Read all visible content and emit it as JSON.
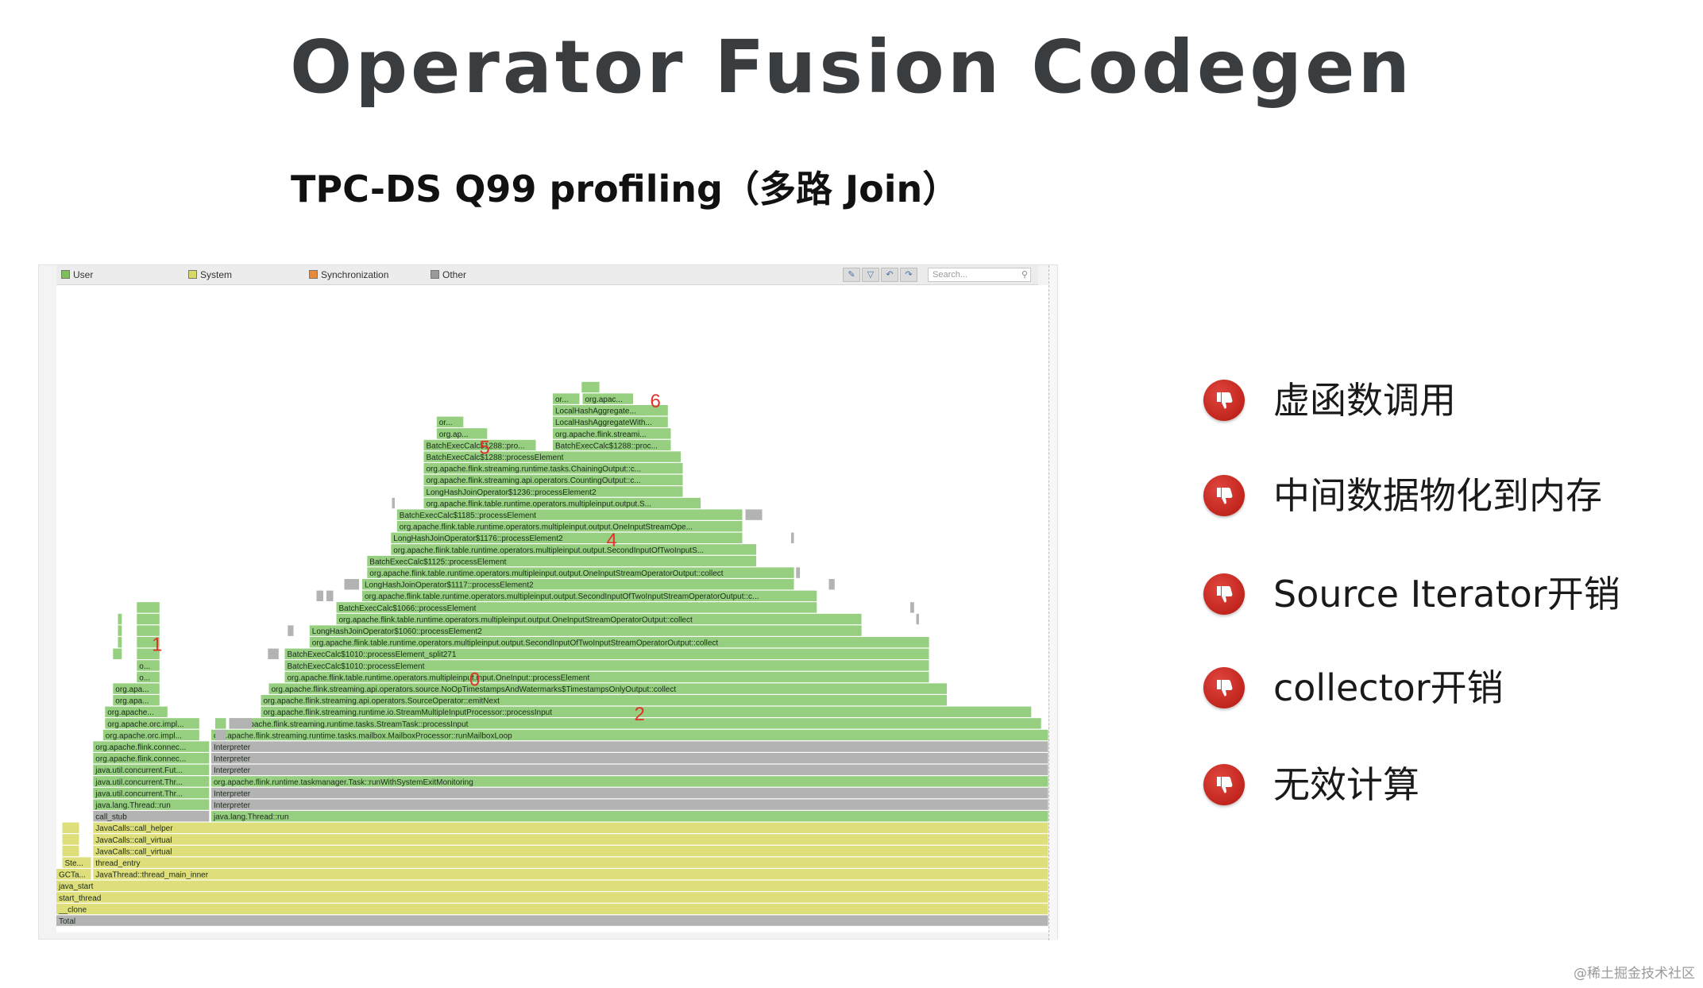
{
  "slide": {
    "title": "Operator Fusion Codegen",
    "subtitle": "TPC-DS Q99 profiling（多路 Join）",
    "watermark": "@稀土掘金技术社区"
  },
  "flamegraph": {
    "legend": [
      {
        "label": "User",
        "color": "#7fbf5a"
      },
      {
        "label": "System",
        "color": "#d8d86a"
      },
      {
        "label": "Synchronization",
        "color": "#e8883a"
      },
      {
        "label": "Other",
        "color": "#9a9a9a"
      }
    ],
    "search_placeholder": "Search...",
    "colors": {
      "user": "#95cf7f",
      "system": "#dede7a",
      "other": "#b3b3b3"
    },
    "frames": [
      {
        "label": "Total",
        "depth": 0,
        "start": 0,
        "end": 1,
        "kind": "other"
      },
      {
        "label": "__clone",
        "depth": 1,
        "start": 0,
        "end": 1,
        "kind": "system"
      },
      {
        "label": "start_thread",
        "depth": 2,
        "start": 0,
        "end": 1,
        "kind": "system"
      },
      {
        "label": "java_start",
        "depth": 3,
        "start": 0,
        "end": 1,
        "kind": "system"
      },
      {
        "label": "GCTa...",
        "depth": 4,
        "start": 0,
        "end": 0.036,
        "kind": "system"
      },
      {
        "label": "JavaThread::thread_main_inner",
        "depth": 4,
        "start": 0.037,
        "end": 1,
        "kind": "system"
      },
      {
        "label": "Ste...",
        "depth": 5,
        "start": 0.006,
        "end": 0.036,
        "kind": "system"
      },
      {
        "label": "thread_entry",
        "depth": 5,
        "start": 0.037,
        "end": 1,
        "kind": "system"
      },
      {
        "label": "",
        "depth": 6,
        "start": 0.006,
        "end": 0.024,
        "kind": "system"
      },
      {
        "label": "JavaCalls::call_virtual",
        "depth": 6,
        "start": 0.037,
        "end": 1,
        "kind": "system"
      },
      {
        "label": "",
        "depth": 7,
        "start": 0.006,
        "end": 0.024,
        "kind": "system"
      },
      {
        "label": "JavaCalls::call_virtual",
        "depth": 7,
        "start": 0.037,
        "end": 1,
        "kind": "system"
      },
      {
        "label": "",
        "depth": 8,
        "start": 0.006,
        "end": 0.024,
        "kind": "system"
      },
      {
        "label": "JavaCalls::call_helper",
        "depth": 8,
        "start": 0.037,
        "end": 1,
        "kind": "system"
      },
      {
        "label": "call_stub",
        "depth": 9,
        "start": 0.037,
        "end": 0.155,
        "kind": "other"
      },
      {
        "label": "java.lang.Thread::run",
        "depth": 9,
        "start": 0.156,
        "end": 1,
        "kind": "user"
      },
      {
        "label": "java.lang.Thread::run",
        "depth": 10,
        "start": 0.037,
        "end": 0.155,
        "kind": "user"
      },
      {
        "label": "Interpreter",
        "depth": 10,
        "start": 0.156,
        "end": 1,
        "kind": "other"
      },
      {
        "label": "java.util.concurrent.Thre...",
        "depth": 11,
        "start": 0.037,
        "end": 0.155,
        "kind": "user"
      },
      {
        "label": "Interpreter",
        "depth": 11,
        "start": 0.156,
        "end": 1,
        "kind": "other"
      },
      {
        "label": "java.util.concurrent.Thre...",
        "depth": 12,
        "start": 0.037,
        "end": 0.155,
        "kind": "user"
      },
      {
        "label": "org.apache.flink.runtime.taskmanager.Task::runWithSystemExitMonitoring",
        "depth": 12,
        "start": 0.156,
        "end": 1,
        "kind": "user"
      },
      {
        "label": "java.util.concurrent.Futu...",
        "depth": 13,
        "start": 0.037,
        "end": 0.155,
        "kind": "user"
      },
      {
        "label": "Interpreter",
        "depth": 13,
        "start": 0.156,
        "end": 1,
        "kind": "other"
      },
      {
        "label": "org.apache.flink.connec...",
        "depth": 14,
        "start": 0.037,
        "end": 0.155,
        "kind": "user"
      },
      {
        "label": "Interpreter",
        "depth": 14,
        "start": 0.156,
        "end": 1,
        "kind": "other"
      },
      {
        "label": "org.apache.flink.connec...",
        "depth": 15,
        "start": 0.037,
        "end": 0.155,
        "kind": "user"
      },
      {
        "label": "Interpreter",
        "depth": 15,
        "start": 0.156,
        "end": 1,
        "kind": "other"
      },
      {
        "label": "org.apache.orc.impl...",
        "depth": 16,
        "start": 0.047,
        "end": 0.145,
        "kind": "user"
      },
      {
        "label": "org.apache.flink.streaming.runtime.tasks.mailbox.MailboxProcessor::runMailboxLoop",
        "depth": 16,
        "start": 0.156,
        "end": 1,
        "kind": "user"
      },
      {
        "label": "org.apache.orc.impl...",
        "depth": 17,
        "start": 0.049,
        "end": 0.145,
        "kind": "user"
      },
      {
        "label": "org.apache.flink.streaming.runtime.tasks.StreamTask::processInput",
        "depth": 17,
        "start": 0.174,
        "end": 0.993,
        "kind": "user"
      },
      {
        "label": "org.apache...",
        "depth": 18,
        "start": 0.049,
        "end": 0.113,
        "kind": "user"
      },
      {
        "label": "org.apache.flink.streaming.runtime.io.StreamMultipleInputProcessor::processInput",
        "depth": 18,
        "start": 0.206,
        "end": 0.983,
        "kind": "user"
      },
      {
        "label": "org.apac...",
        "depth": 19,
        "start": 0.057,
        "end": 0.105,
        "kind": "user"
      },
      {
        "label": "org.apache.flink.streaming.api.operators.SourceOperator::emitNext",
        "depth": 19,
        "start": 0.206,
        "end": 0.898,
        "kind": "user"
      },
      {
        "label": "org.apa...",
        "depth": 20,
        "start": 0.057,
        "end": 0.105,
        "kind": "user"
      },
      {
        "label": "org.apache.flink.streaming.api.operators.source.NoOpTimestampsAndWatermarks$TimestampsOnlyOutput::collect",
        "depth": 20,
        "start": 0.214,
        "end": 0.898,
        "kind": "user"
      },
      {
        "label": "org...",
        "depth": 21,
        "start": 0.081,
        "end": 0.105,
        "kind": "user"
      },
      {
        "label": "org.apache.flink.table.runtime.operators.multipleinput.input.OneInput::processElement",
        "depth": 21,
        "start": 0.23,
        "end": 0.88,
        "kind": "user"
      },
      {
        "label": "org...",
        "depth": 22,
        "start": 0.081,
        "end": 0.105,
        "kind": "user"
      },
      {
        "label": "BatchExecCalc$1010::processElement",
        "depth": 22,
        "start": 0.23,
        "end": 0.88,
        "kind": "user"
      },
      {
        "label": "",
        "depth": 23,
        "start": 0.057,
        "end": 0.067,
        "kind": "user"
      },
      {
        "label": "",
        "depth": 23,
        "start": 0.081,
        "end": 0.105,
        "kind": "user"
      },
      {
        "label": "BatchExecCalc$1010::processElement_split271",
        "depth": 23,
        "start": 0.23,
        "end": 0.88,
        "kind": "user"
      },
      {
        "label": "",
        "depth": 24,
        "start": 0.062,
        "end": 0.067,
        "kind": "user"
      },
      {
        "label": "",
        "depth": 24,
        "start": 0.081,
        "end": 0.105,
        "kind": "user"
      },
      {
        "label": "org.apache.flink.table.runtime.operators.multipleinput.output.SecondInputOfTwoInputStreamOperatorOutput::collect",
        "depth": 24,
        "start": 0.255,
        "end": 0.88,
        "kind": "user"
      },
      {
        "label": "",
        "depth": 25,
        "start": 0.062,
        "end": 0.067,
        "kind": "user"
      },
      {
        "label": "",
        "depth": 25,
        "start": 0.081,
        "end": 0.105,
        "kind": "user"
      },
      {
        "label": "LongHashJoinOperator$1060::processElement2",
        "depth": 25,
        "start": 0.255,
        "end": 0.812,
        "kind": "user"
      },
      {
        "label": "",
        "depth": 26,
        "start": 0.062,
        "end": 0.067,
        "kind": "user"
      },
      {
        "label": "",
        "depth": 26,
        "start": 0.081,
        "end": 0.105,
        "kind": "user"
      },
      {
        "label": "org.apache.flink.table.runtime.operators.multipleinput.output.OneInputStreamOperatorOutput::collect",
        "depth": 26,
        "start": 0.282,
        "end": 0.812,
        "kind": "user"
      },
      {
        "label": "",
        "depth": 27,
        "start": 0.081,
        "end": 0.105,
        "kind": "user"
      },
      {
        "label": "BatchExecCalc$1066::processElement",
        "depth": 27,
        "start": 0.282,
        "end": 0.767,
        "kind": "user"
      },
      {
        "label": "org.apache.flink.table.runtime.operators.multipleinput.output.SecondInputOfTwoInputStreamOperatorOutput::collect",
        "depth": 28,
        "start": 0.308,
        "end": 0.767,
        "kind": "user"
      },
      {
        "label": "LongHashJoinOperator$1117::processElement2",
        "depth": 29,
        "start": 0.308,
        "end": 0.744,
        "kind": "user"
      },
      {
        "label": "org.apache.flink.table.runtime.operators.multipleinput.output.OneInputStreamOperatorOutput::collect",
        "depth": 30,
        "start": 0.313,
        "end": 0.744,
        "kind": "user"
      },
      {
        "label": "BatchExecCalc$1125::processElement",
        "depth": 31,
        "start": 0.313,
        "end": 0.706,
        "kind": "user"
      },
      {
        "label": "org.apache.flink.table.runtime.operators.multipleinput.output.SecondInputOfTwoInputStreamOperatorOutput::collect",
        "depth": 32,
        "start": 0.337,
        "end": 0.706,
        "kind": "user"
      },
      {
        "label": "LongHashJoinOperator$1176::processElement2",
        "depth": 33,
        "start": 0.337,
        "end": 0.692,
        "kind": "user"
      },
      {
        "label": "org.apache.flink.table.runtime.operators.multipleinput.output.OneInputStreamOperatorOutput::collect",
        "depth": 34,
        "start": 0.343,
        "end": 0.692,
        "kind": "user"
      },
      {
        "label": "BatchExecCalc$1185::processElement",
        "depth": 35,
        "start": 0.343,
        "end": 0.692,
        "kind": "user"
      },
      {
        "label": "org.apache.flink.table.runtime.operators.multipleinput.output.Se...",
        "depth": 36,
        "start": 0.37,
        "end": 0.65,
        "kind": "user"
      },
      {
        "label": "LongHashJoinOperator$1236::processElement2",
        "depth": 37,
        "start": 0.37,
        "end": 0.632,
        "kind": "user"
      },
      {
        "label": "org.apache.flink.streaming.api.operators.CountingOutput::co...",
        "depth": 38,
        "start": 0.37,
        "end": 0.632,
        "kind": "user"
      },
      {
        "label": "org.apache.flink.streaming.runtime.tasks.ChainingOutput::co...",
        "depth": 39,
        "start": 0.37,
        "end": 0.632,
        "kind": "user"
      },
      {
        "label": "BatchExecCalc$1288::processElement",
        "depth": 40,
        "start": 0.37,
        "end": 0.63,
        "kind": "user"
      },
      {
        "label": "BatchExecCalc$1288::proc...",
        "depth": 41,
        "start": 0.37,
        "end": 0.484,
        "kind": "user"
      },
      {
        "label": "BatchExecCalc$1288::proce...",
        "depth": 41,
        "start": 0.5,
        "end": 0.62,
        "kind": "user"
      },
      {
        "label": "org.ap...",
        "depth": 42,
        "start": 0.383,
        "end": 0.435,
        "kind": "user"
      },
      {
        "label": "org.apache.flink.streamin...",
        "depth": 42,
        "start": 0.5,
        "end": 0.62,
        "kind": "user"
      },
      {
        "label": "or...",
        "depth": 43,
        "start": 0.383,
        "end": 0.411,
        "kind": "user"
      },
      {
        "label": "LocalHashAggregateWith...",
        "depth": 43,
        "start": 0.5,
        "end": 0.617,
        "kind": "user"
      },
      {
        "label": "LocalHashAggregate...",
        "depth": 44,
        "start": 0.5,
        "end": 0.617,
        "kind": "user"
      },
      {
        "label": "org...",
        "depth": 45,
        "start": 0.5,
        "end": 0.528,
        "kind": "user"
      },
      {
        "label": "org.apach...",
        "depth": 45,
        "start": 0.53,
        "end": 0.582,
        "kind": "user"
      },
      {
        "label": "",
        "depth": 46,
        "start": 0.529,
        "end": 0.548,
        "kind": "user"
      }
    ],
    "extra_stacks": [
      {
        "label": "",
        "depth": 16,
        "start": 0.16,
        "end": 0.172,
        "kind": "other"
      },
      {
        "label": "",
        "depth": 17,
        "start": 0.16,
        "end": 0.172,
        "kind": "user"
      },
      {
        "label": "",
        "depth": 17,
        "start": 0.174,
        "end": 0.198,
        "kind": "other"
      },
      {
        "label": "",
        "depth": 25,
        "start": 0.233,
        "end": 0.24,
        "kind": "other"
      },
      {
        "label": "",
        "depth": 23,
        "start": 0.213,
        "end": 0.225,
        "kind": "other"
      },
      {
        "label": "",
        "depth": 28,
        "start": 0.262,
        "end": 0.27,
        "kind": "other"
      },
      {
        "label": "",
        "depth": 28,
        "start": 0.272,
        "end": 0.28,
        "kind": "other"
      },
      {
        "label": "",
        "depth": 29,
        "start": 0.29,
        "end": 0.306,
        "kind": "other"
      },
      {
        "label": "",
        "depth": 29,
        "start": 0.778,
        "end": 0.785,
        "kind": "other"
      },
      {
        "label": "",
        "depth": 30,
        "start": 0.745,
        "end": 0.75,
        "kind": "other"
      },
      {
        "label": "",
        "depth": 36,
        "start": 0.338,
        "end": 0.342,
        "kind": "other"
      },
      {
        "label": "",
        "depth": 35,
        "start": 0.694,
        "end": 0.712,
        "kind": "other"
      },
      {
        "label": "",
        "depth": 33,
        "start": 0.74,
        "end": 0.744,
        "kind": "other"
      },
      {
        "label": "",
        "depth": 26,
        "start": 0.866,
        "end": 0.87,
        "kind": "other"
      },
      {
        "label": "",
        "depth": 27,
        "start": 0.86,
        "end": 0.865,
        "kind": "other"
      }
    ],
    "annotations": [
      {
        "label": "1",
        "x": 0.096,
        "depth": 24
      },
      {
        "label": "0",
        "x": 0.416,
        "depth": 21
      },
      {
        "label": "2",
        "x": 0.582,
        "depth": 18
      },
      {
        "label": "4",
        "x": 0.554,
        "depth": 33
      },
      {
        "label": "5",
        "x": 0.426,
        "depth": 41
      },
      {
        "label": "6",
        "x": 0.598,
        "depth": 45
      }
    ]
  },
  "cons": {
    "items": [
      {
        "label": "虚函数调用"
      },
      {
        "label": "中间数据物化到内存"
      },
      {
        "label": "Source Iterator开销"
      },
      {
        "label": "collector开销"
      },
      {
        "label": "无效计算"
      }
    ]
  }
}
